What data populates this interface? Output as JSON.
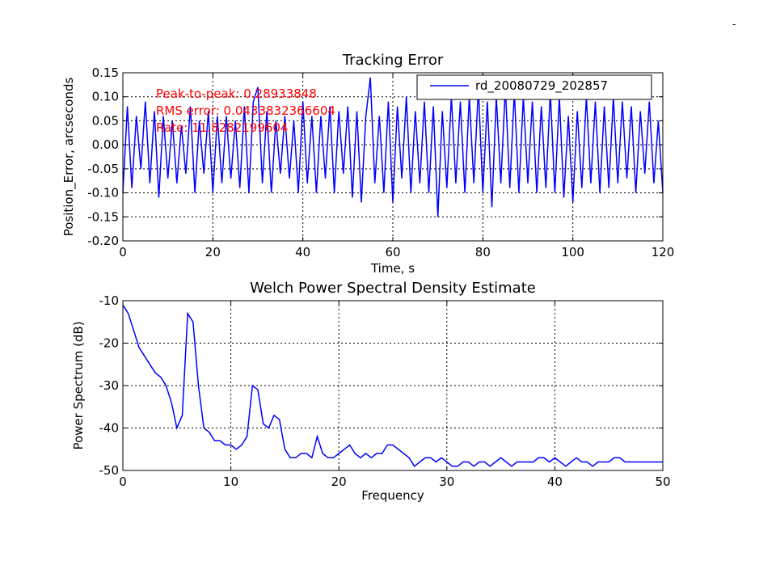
{
  "corner_mark": "-",
  "chart_data": [
    {
      "type": "line",
      "title": "Tracking Error",
      "xlabel": "Time, s",
      "ylabel": "Position_Error, arcseconds",
      "xlim": [
        0,
        120
      ],
      "ylim": [
        -0.2,
        0.15
      ],
      "xticks": [
        "0",
        "20",
        "40",
        "60",
        "80",
        "100",
        "120"
      ],
      "yticks": [
        "-0.20",
        "-0.15",
        "-0.10",
        "-0.05",
        "0.00",
        "0.05",
        "0.10",
        "0.15"
      ],
      "grid": true,
      "legend": {
        "position": "top-right",
        "entries": [
          "rd_20080729_202857"
        ]
      },
      "annotations": [
        "Peak-to-peak: 0.28933848",
        "RMS error: 0.0433832366604",
        "Rate: 11.8282199604"
      ],
      "series": [
        {
          "name": "rd_20080729_202857",
          "color": "#0000ff",
          "x": [
            0,
            1,
            2,
            3,
            4,
            5,
            6,
            7,
            8,
            9,
            10,
            11,
            12,
            13,
            14,
            15,
            16,
            17,
            18,
            19,
            20,
            21,
            22,
            23,
            24,
            25,
            26,
            27,
            28,
            29,
            30,
            31,
            32,
            33,
            34,
            35,
            36,
            37,
            38,
            39,
            40,
            41,
            42,
            43,
            44,
            45,
            46,
            47,
            48,
            49,
            50,
            51,
            52,
            53,
            54,
            55,
            56,
            57,
            58,
            59,
            60,
            61,
            62,
            63,
            64,
            65,
            66,
            67,
            68,
            69,
            70,
            71,
            72,
            73,
            74,
            75,
            76,
            77,
            78,
            79,
            80,
            81,
            82,
            83,
            84,
            85,
            86,
            87,
            88,
            89,
            90,
            91,
            92,
            93,
            94,
            95,
            96,
            97,
            98,
            99,
            100,
            101,
            102,
            103,
            104,
            105,
            106,
            107,
            108,
            109,
            110,
            111,
            112,
            113,
            114,
            115,
            116,
            117,
            118,
            119,
            120
          ],
          "y": [
            -0.1,
            0.08,
            -0.09,
            0.06,
            -0.05,
            0.09,
            -0.08,
            0.07,
            -0.11,
            0.06,
            -0.07,
            0.05,
            -0.08,
            0.04,
            -0.06,
            0.08,
            -0.1,
            0.05,
            -0.06,
            0.07,
            -0.1,
            0.06,
            -0.08,
            0.06,
            -0.07,
            0.05,
            -0.09,
            0.08,
            -0.1,
            0.09,
            0.12,
            -0.08,
            0.07,
            -0.1,
            0.05,
            -0.06,
            0.06,
            -0.07,
            0.05,
            -0.1,
            0.09,
            -0.08,
            0.06,
            -0.1,
            0.06,
            -0.07,
            0.08,
            -0.1,
            0.07,
            -0.06,
            0.08,
            -0.11,
            0.07,
            -0.12,
            0.06,
            0.14,
            -0.08,
            0.06,
            -0.1,
            0.09,
            -0.12,
            0.08,
            -0.07,
            0.1,
            -0.1,
            0.07,
            -0.08,
            0.09,
            -0.1,
            0.08,
            -0.15,
            0.07,
            -0.09,
            0.1,
            -0.08,
            0.09,
            -0.1,
            0.1,
            -0.08,
            0.12,
            -0.1,
            0.09,
            -0.13,
            0.1,
            -0.08,
            0.12,
            -0.09,
            0.11,
            -0.1,
            0.1,
            -0.08,
            0.09,
            -0.1,
            0.08,
            -0.09,
            0.11,
            -0.1,
            0.1,
            -0.11,
            0.06,
            -0.12,
            0.07,
            -0.09,
            0.1,
            -0.08,
            0.09,
            -0.1,
            0.08,
            -0.09,
            0.1,
            -0.08,
            0.09,
            -0.07,
            0.08,
            -0.1,
            0.07,
            -0.06,
            0.09,
            -0.08,
            0.05,
            -0.1
          ]
        }
      ]
    },
    {
      "type": "line",
      "title": "Welch Power Spectral Density Estimate",
      "xlabel": "Frequency",
      "ylabel": "Power Spectrum (dB)",
      "xlim": [
        0,
        50
      ],
      "ylim": [
        -50,
        -10
      ],
      "xticks": [
        "0",
        "10",
        "20",
        "30",
        "40",
        "50"
      ],
      "yticks": [
        "-50",
        "-40",
        "-30",
        "-20",
        "-10"
      ],
      "grid": true,
      "series": [
        {
          "color": "#0000ff",
          "x": [
            0,
            0.5,
            1,
            1.5,
            2,
            2.5,
            3,
            3.5,
            4,
            4.5,
            5,
            5.5,
            6,
            6.5,
            7,
            7.5,
            8,
            8.5,
            9,
            9.5,
            10,
            10.5,
            11,
            11.5,
            12,
            12.5,
            13,
            13.5,
            14,
            14.5,
            15,
            15.5,
            16,
            16.5,
            17,
            17.5,
            18,
            18.5,
            19,
            19.5,
            20,
            20.5,
            21,
            21.5,
            22,
            22.5,
            23,
            23.5,
            24,
            24.5,
            25,
            25.5,
            26,
            26.5,
            27,
            27.5,
            28,
            28.5,
            29,
            29.5,
            30,
            30.5,
            31,
            31.5,
            32,
            32.5,
            33,
            33.5,
            34,
            34.5,
            35,
            35.5,
            36,
            36.5,
            37,
            37.5,
            38,
            38.5,
            39,
            39.5,
            40,
            40.5,
            41,
            41.5,
            42,
            42.5,
            43,
            43.5,
            44,
            44.5,
            45,
            45.5,
            46,
            46.5,
            47,
            47.5,
            48,
            48.5,
            49,
            49.5,
            50
          ],
          "y": [
            -11,
            -13,
            -17,
            -21,
            -23,
            -25,
            -27,
            -28,
            -30,
            -34,
            -40,
            -37,
            -13,
            -15,
            -30,
            -40,
            -41,
            -43,
            -43,
            -44,
            -44,
            -45,
            -44,
            -42,
            -30,
            -31,
            -39,
            -40,
            -37,
            -38,
            -45,
            -47,
            -47,
            -46,
            -46,
            -47,
            -42,
            -46,
            -47,
            -47,
            -46,
            -45,
            -44,
            -46,
            -47,
            -46,
            -47,
            -46,
            -46,
            -44,
            -44,
            -45,
            -46,
            -47,
            -49,
            -48,
            -47,
            -47,
            -48,
            -47,
            -48,
            -49,
            -49,
            -48,
            -48,
            -49,
            -48,
            -48,
            -49,
            -48,
            -47,
            -48,
            -49,
            -48,
            -48,
            -48,
            -48,
            -47,
            -47,
            -48,
            -47,
            -48,
            -49,
            -48,
            -47,
            -48,
            -48,
            -49,
            -48,
            -48,
            -48,
            -47,
            -47,
            -48,
            -48,
            -48,
            -48,
            -48,
            -48,
            -48,
            -48
          ]
        }
      ]
    }
  ]
}
